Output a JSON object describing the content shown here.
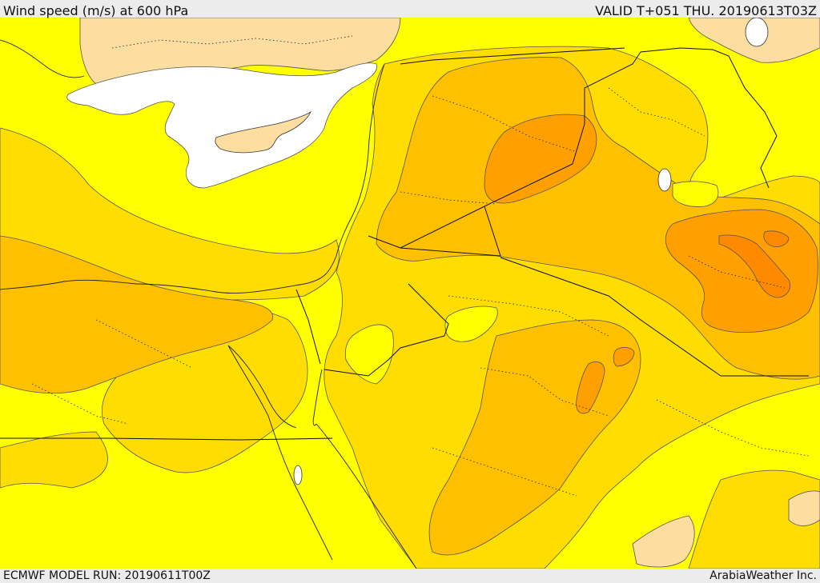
{
  "header": {
    "title": "Wind speed (m/s) at 600 hPa",
    "valid": "VALID T+051 THU. 20190613T03Z"
  },
  "footer": {
    "model_run": "ECMWF MODEL RUN: 20190611T00Z",
    "credit": "ArabiaWeather Inc."
  },
  "colors": {
    "band_calm": "#ffffff",
    "band_tan": "#fddda0",
    "band_yellow": "#ffff00",
    "band_gold": "#ffdd00",
    "band_amber": "#ffc000",
    "band_orange": "#ffa000",
    "band_dark_orange": "#ff8a00",
    "contour_line": "#555555",
    "border_line": "#111111"
  }
}
